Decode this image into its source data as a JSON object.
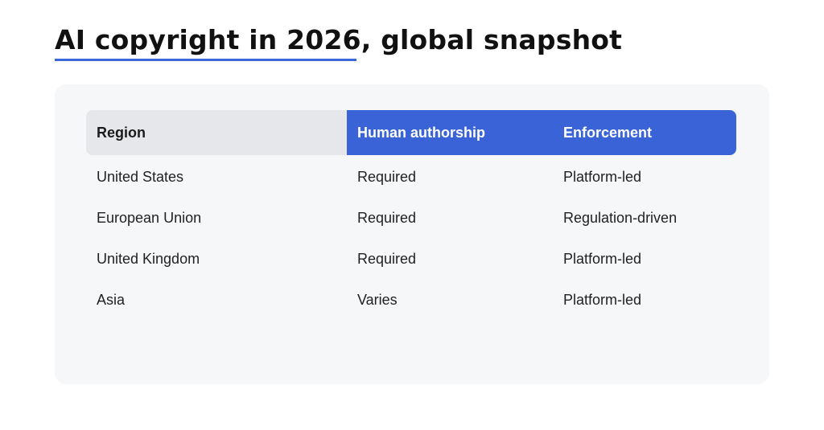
{
  "title": "AI copyright in 2026, global snapshot",
  "colors": {
    "accent": "#3a63d8",
    "header_neutral": "#e5e7eb",
    "card_background": "#f6f7f9"
  },
  "table": {
    "headers": [
      "Region",
      "Human authorship",
      "Enforcement"
    ],
    "rows": [
      [
        "United States",
        "Required",
        "Platform-led"
      ],
      [
        "European Union",
        "Required",
        "Regulation-driven"
      ],
      [
        "United Kingdom",
        "Required",
        "Platform-led"
      ],
      [
        "Asia",
        "Varies",
        "Platform-led"
      ]
    ]
  }
}
